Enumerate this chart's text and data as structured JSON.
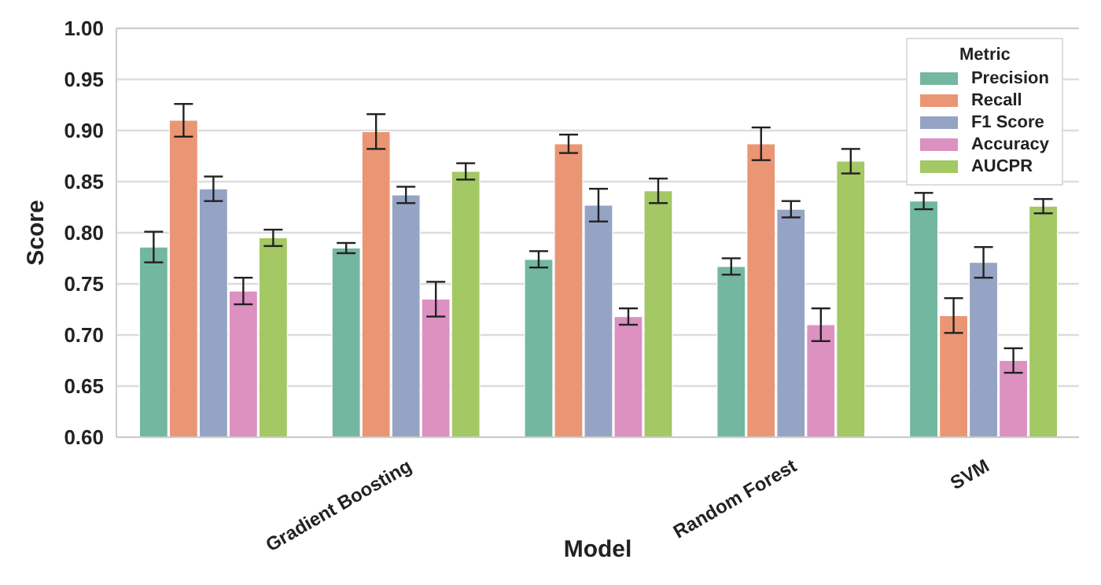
{
  "chart_data": {
    "type": "bar",
    "xlabel": "Model",
    "ylabel": "Score",
    "legend_title": "Metric",
    "categories": [
      null,
      "Gradient Boosting",
      null,
      "Random Forest",
      "SVM"
    ],
    "series": [
      {
        "name": "Precision",
        "color": "#73b7a0",
        "values": [
          0.786,
          0.785,
          0.774,
          0.767,
          0.831
        ],
        "errors": [
          0.015,
          0.005,
          0.008,
          0.008,
          0.008
        ]
      },
      {
        "name": "Recall",
        "color": "#ea9674",
        "values": [
          0.91,
          0.899,
          0.887,
          0.887,
          0.719
        ],
        "errors": [
          0.016,
          0.017,
          0.009,
          0.016,
          0.017
        ]
      },
      {
        "name": "F1 Score",
        "color": "#95a4c4",
        "values": [
          0.843,
          0.837,
          0.827,
          0.823,
          0.771
        ],
        "errors": [
          0.012,
          0.008,
          0.016,
          0.008,
          0.015
        ]
      },
      {
        "name": "Accuracy",
        "color": "#dc91c1",
        "values": [
          0.743,
          0.735,
          0.718,
          0.71,
          0.675
        ],
        "errors": [
          0.013,
          0.017,
          0.008,
          0.016,
          0.012
        ]
      },
      {
        "name": "AUCPR",
        "color": "#a3c864",
        "values": [
          0.795,
          0.86,
          0.841,
          0.87,
          0.826
        ],
        "errors": [
          0.008,
          0.008,
          0.012,
          0.012,
          0.007
        ]
      }
    ],
    "ylim": [
      0.6,
      1.0
    ],
    "yticks": [
      {
        "value": 0.6,
        "label": "0.60"
      },
      {
        "value": 0.65,
        "label": "0.65"
      },
      {
        "value": 0.7,
        "label": "0.70"
      },
      {
        "value": 0.75,
        "label": "0.75"
      },
      {
        "value": 0.8,
        "label": "0.80"
      },
      {
        "value": 0.85,
        "label": "0.85"
      },
      {
        "value": 0.9,
        "label": "0.90"
      },
      {
        "value": 0.95,
        "label": "0.95"
      },
      {
        "value": 1.0,
        "label": "1.00"
      }
    ],
    "grid": "y",
    "legend": "top right"
  }
}
